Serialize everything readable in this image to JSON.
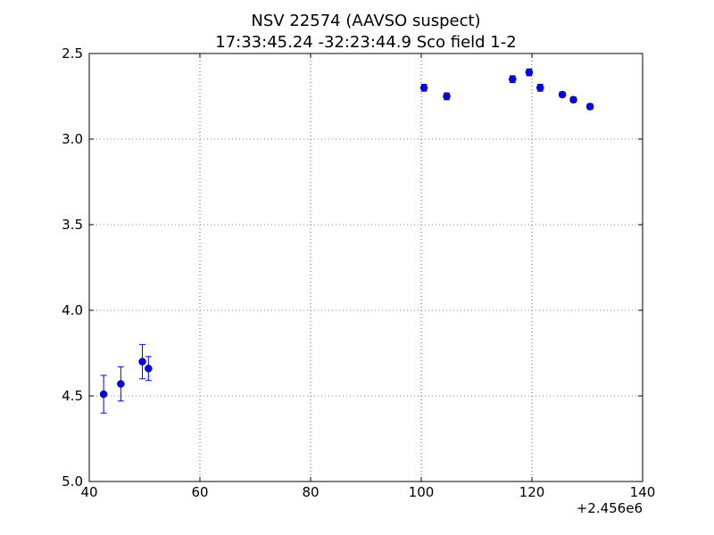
{
  "chart_data": {
    "type": "scatter",
    "title": "NSV 22574  (AAVSO suspect)",
    "subtitle": "17:33:45.24 -32:23:44.9 Sco field 1-2",
    "xlabel": "",
    "ylabel": "",
    "x_offset_label": "+2.456e6",
    "xlim": [
      40,
      140
    ],
    "ylim": [
      5.0,
      2.5
    ],
    "y_inverted": true,
    "grid": true,
    "x_ticks": [
      "40",
      "60",
      "80",
      "100",
      "120",
      "140"
    ],
    "y_ticks": [
      "2.5",
      "3.0",
      "3.5",
      "4.0",
      "4.5",
      "5.0"
    ],
    "x_tick_values": [
      40,
      60,
      80,
      100,
      120,
      140
    ],
    "y_tick_values": [
      2.5,
      3.0,
      3.5,
      4.0,
      4.5,
      5.0
    ],
    "marker_color": "#0000ff",
    "points": [
      {
        "x": 42.6,
        "y": 4.49,
        "err": 0.11
      },
      {
        "x": 45.7,
        "y": 4.43,
        "err": 0.1
      },
      {
        "x": 49.6,
        "y": 4.3,
        "err": 0.1
      },
      {
        "x": 50.7,
        "y": 4.34,
        "err": 0.07
      },
      {
        "x": 100.5,
        "y": 2.7,
        "err": 0.02
      },
      {
        "x": 104.6,
        "y": 2.75,
        "err": 0.02
      },
      {
        "x": 116.5,
        "y": 2.65,
        "err": 0.02
      },
      {
        "x": 119.5,
        "y": 2.61,
        "err": 0.02
      },
      {
        "x": 121.5,
        "y": 2.7,
        "err": 0.02
      },
      {
        "x": 125.5,
        "y": 2.74,
        "err": 0.015
      },
      {
        "x": 127.5,
        "y": 2.77,
        "err": 0.015
      },
      {
        "x": 130.5,
        "y": 2.81,
        "err": 0.015
      }
    ]
  }
}
